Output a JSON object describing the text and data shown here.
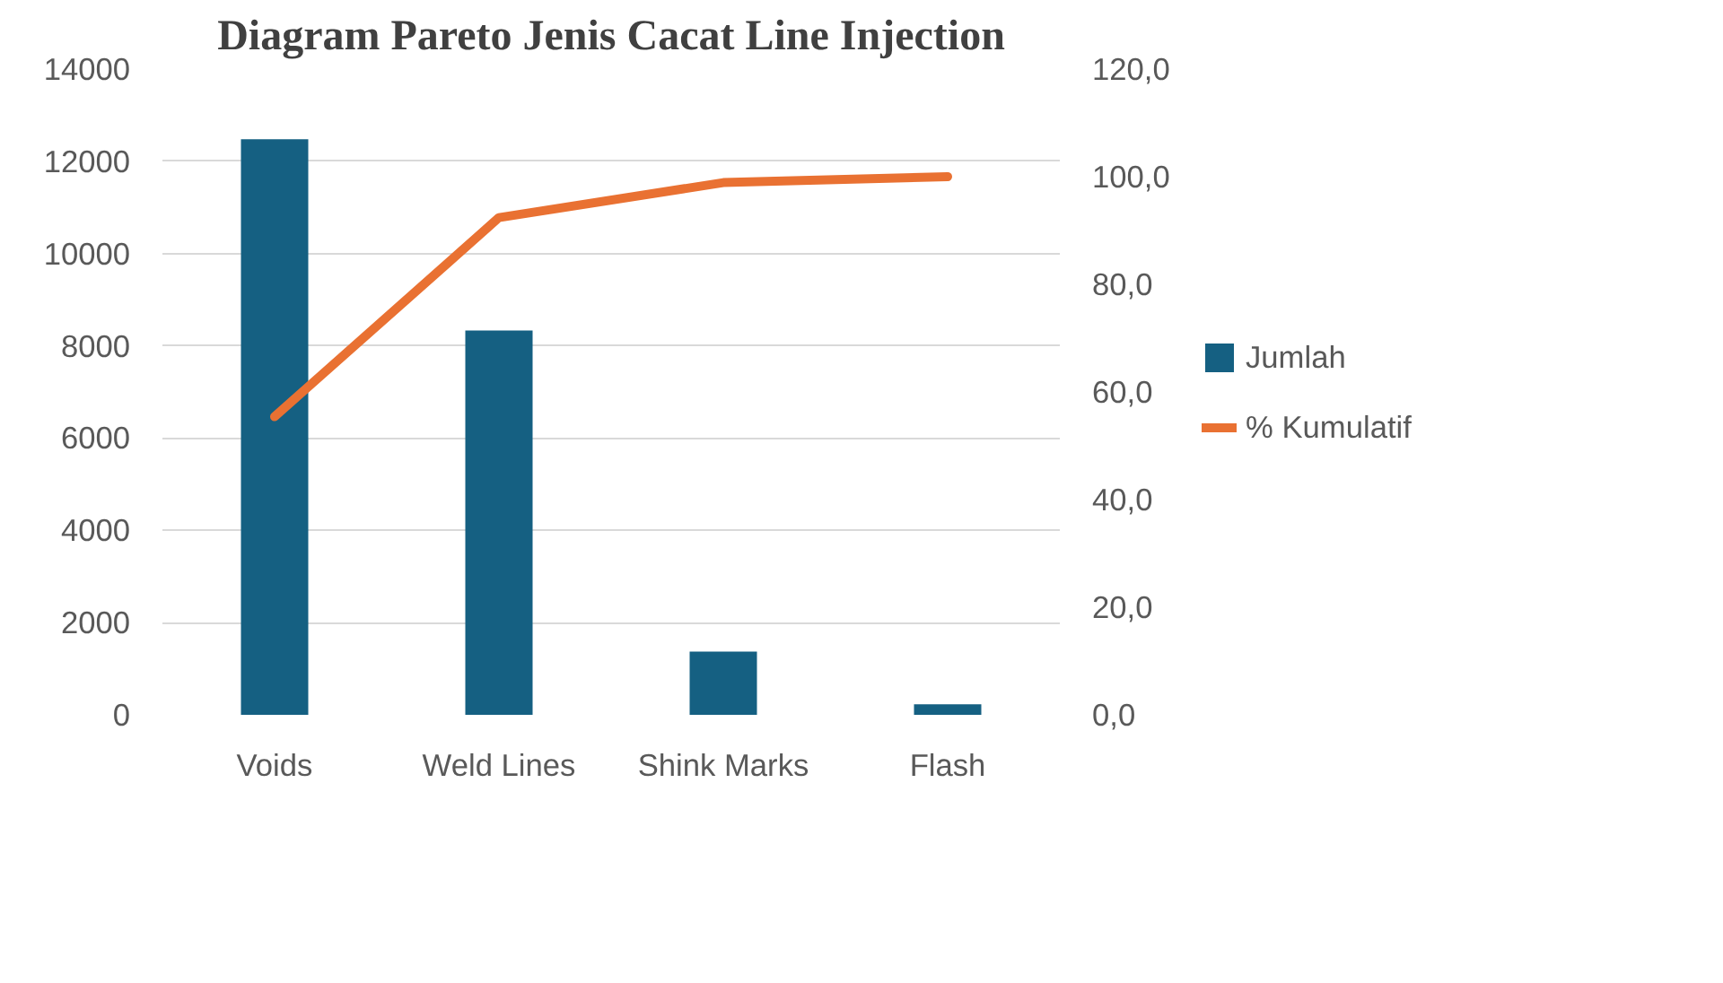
{
  "chart_data": {
    "type": "bar",
    "title": "Diagram Pareto Jenis Cacat Line Injection",
    "categories": [
      "Voids",
      "Weld Lines",
      "Shink Marks",
      "Flash"
    ],
    "series": [
      {
        "name": "Jumlah",
        "color": "#156082",
        "values": [
          12480,
          8330,
          1370,
          230
        ]
      },
      {
        "name": "% Kumulatif",
        "color": "#e97132",
        "type": "line",
        "axis": "y2",
        "values": [
          55.4,
          92.4,
          98.9,
          100.0
        ]
      }
    ],
    "ylim": [
      0,
      14000
    ],
    "yticks": [
      0,
      2000,
      4000,
      6000,
      8000,
      10000,
      12000,
      14000
    ],
    "y2lim": [
      0,
      120
    ],
    "y2ticks": [
      {
        "value": 0,
        "label": "0,0"
      },
      {
        "value": 20,
        "label": "20,0"
      },
      {
        "value": 40,
        "label": "40,0"
      },
      {
        "value": 60,
        "label": "60,0"
      },
      {
        "value": 80,
        "label": "80,0"
      },
      {
        "value": 100,
        "label": "100,0"
      },
      {
        "value": 120,
        "label": "120,0"
      }
    ],
    "grid": "y",
    "legend": "right"
  }
}
